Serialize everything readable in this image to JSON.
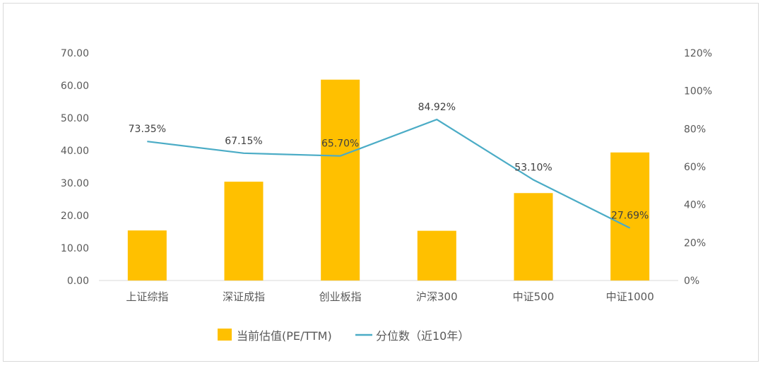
{
  "chart_data": {
    "type": "bar",
    "categories": [
      "上证综指",
      "深证成指",
      "创业板指",
      "沪深300",
      "中证500",
      "中证1000"
    ],
    "series": [
      {
        "name": "当前估值(PE/TTM)",
        "type": "bar",
        "axis": "left",
        "values": [
          15.4,
          30.4,
          61.8,
          15.3,
          26.9,
          39.4
        ],
        "color": "#FFC000"
      },
      {
        "name": "分位数（近10年）",
        "type": "line",
        "axis": "right",
        "values": [
          73.35,
          67.15,
          65.7,
          84.92,
          53.1,
          27.69
        ],
        "data_labels": [
          "73.35%",
          "67.15%",
          "65.70%",
          "84.92%",
          "53.10%",
          "27.69%"
        ],
        "color": "#4BACC6"
      }
    ],
    "y_left": {
      "ylim": [
        0,
        70
      ],
      "ticks": [
        "0.00",
        "10.00",
        "20.00",
        "30.00",
        "40.00",
        "50.00",
        "60.00",
        "70.00"
      ]
    },
    "y_right": {
      "ylim": [
        0,
        120
      ],
      "ticks": [
        "0%",
        "20%",
        "40%",
        "60%",
        "80%",
        "100%",
        "120%"
      ]
    },
    "grid": false,
    "legend": "bottom"
  }
}
